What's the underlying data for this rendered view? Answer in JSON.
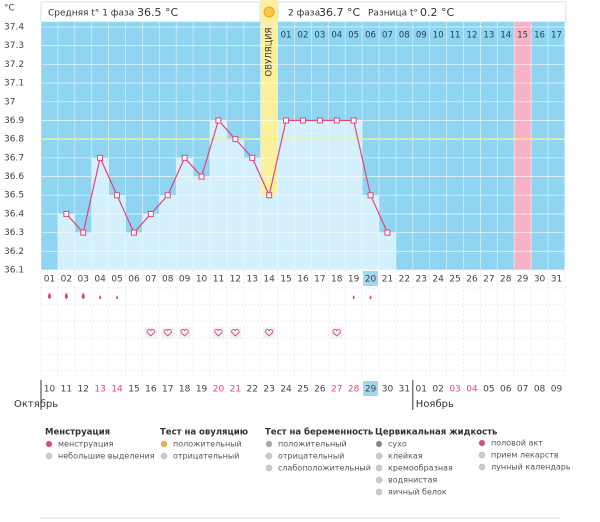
{
  "unit_label": "°C",
  "summary": {
    "phase1_label": "Средняя t° 1 фаза",
    "phase1_value": "36.5 °C",
    "phase2_label": "2 фаза",
    "phase2_value": "36.7 °C",
    "diff_label": "Разница t°",
    "diff_value": "0.2 °C"
  },
  "chart_data": {
    "type": "line",
    "categories": [
      "01",
      "02",
      "03",
      "04",
      "05",
      "06",
      "07",
      "08",
      "09",
      "10",
      "11",
      "12",
      "13",
      "14",
      "15",
      "16",
      "17",
      "18",
      "19",
      "20",
      "21",
      "22",
      "23",
      "24",
      "25",
      "26",
      "27",
      "28",
      "29",
      "30",
      "31"
    ],
    "values": [
      null,
      36.4,
      36.3,
      36.7,
      36.5,
      36.3,
      36.4,
      36.5,
      36.7,
      36.6,
      36.9,
      36.8,
      36.7,
      36.5,
      36.9,
      36.9,
      36.9,
      36.9,
      36.9,
      36.5,
      36.3,
      null,
      null,
      null,
      null,
      null,
      null,
      null,
      null,
      null,
      null
    ],
    "color": "#e0457b",
    "ylim": [
      36.1,
      37.4
    ],
    "yticks": [
      36.1,
      36.2,
      36.3,
      36.4,
      36.5,
      36.6,
      36.7,
      36.8,
      36.9,
      37,
      37.1,
      37.2,
      37.3,
      37.4
    ],
    "coverline": 36.8,
    "grid": true,
    "ovulation": {
      "label": "ОВУЛЯЦИЯ",
      "category": "14"
    },
    "highlight_category": "29",
    "today_category": "20",
    "phase2_start": "15",
    "phase2_days": [
      "01",
      "02",
      "03",
      "04",
      "05",
      "06",
      "07",
      "08",
      "09",
      "10",
      "11",
      "12",
      "13",
      "14",
      "15",
      "16",
      "17"
    ],
    "menstruation_days": [
      "01",
      "02",
      "03"
    ],
    "spotting_days": [
      "04",
      "05",
      "19",
      "20"
    ],
    "intercourse_days": [
      "07",
      "08",
      "09",
      "11",
      "12",
      "14",
      "18"
    ],
    "dates": [
      "10",
      "11",
      "12",
      "13",
      "14",
      "15",
      "16",
      "17",
      "18",
      "19",
      "20",
      "21",
      "22",
      "23",
      "24",
      "25",
      "26",
      "27",
      "28",
      "29",
      "30",
      "31",
      "01",
      "02",
      "03",
      "04",
      "05",
      "06",
      "07",
      "08",
      "09"
    ],
    "red_dates": [
      "13",
      "14",
      "20",
      "21",
      "27",
      "28",
      "03",
      "04"
    ],
    "months": [
      "Октябрь",
      "Ноябрь"
    ]
  },
  "legend": [
    {
      "title": "Менструация",
      "items": [
        "менструация",
        "небольшие выделения"
      ]
    },
    {
      "title": "Тест на овуляцию",
      "items": [
        "положительный",
        "отрицательный"
      ]
    },
    {
      "title": "Тест на беременность",
      "items": [
        "положительный",
        "отрицательный",
        "слабоположительный"
      ]
    },
    {
      "title": "Цервикальная жидкость",
      "items": [
        "сухо",
        "клейкая",
        "кремообразная",
        "водянистая",
        "яичный белок"
      ]
    },
    {
      "items": [
        "половой акт",
        "прием лекарств",
        "лунный календарь"
      ]
    }
  ]
}
